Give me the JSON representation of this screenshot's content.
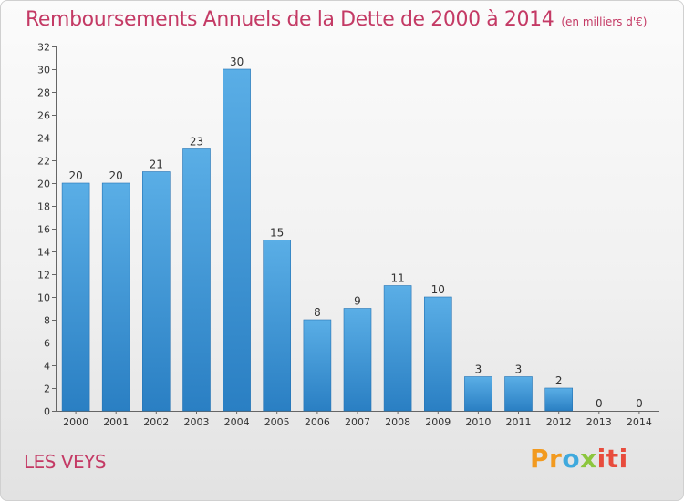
{
  "header": {
    "title": "Remboursements Annuels de la Dette de 2000 à 2014",
    "unit": "(en milliers d'€)"
  },
  "footer": {
    "location": "LES VEYS",
    "brand": [
      "Pr",
      "o",
      "x",
      "iti"
    ]
  },
  "colors": {
    "title": "#c43a65",
    "bar_top": "#5aaee6",
    "bar_bottom": "#2a7fc3"
  },
  "chart_data": {
    "type": "bar",
    "categories": [
      "2000",
      "2001",
      "2002",
      "2003",
      "2004",
      "2005",
      "2006",
      "2007",
      "2008",
      "2009",
      "2010",
      "2011",
      "2012",
      "2013",
      "2014"
    ],
    "values": [
      20,
      20,
      21,
      23,
      30,
      15,
      8,
      9,
      11,
      10,
      3,
      3,
      2,
      0,
      0
    ],
    "title": "Remboursements Annuels de la Dette de 2000 à 2014",
    "xlabel": "",
    "ylabel": "",
    "ylim": [
      0,
      32
    ],
    "yticks": [
      0,
      2,
      4,
      6,
      8,
      10,
      12,
      14,
      16,
      18,
      20,
      22,
      24,
      26,
      28,
      30,
      32
    ],
    "grid": false,
    "legend": "none"
  }
}
